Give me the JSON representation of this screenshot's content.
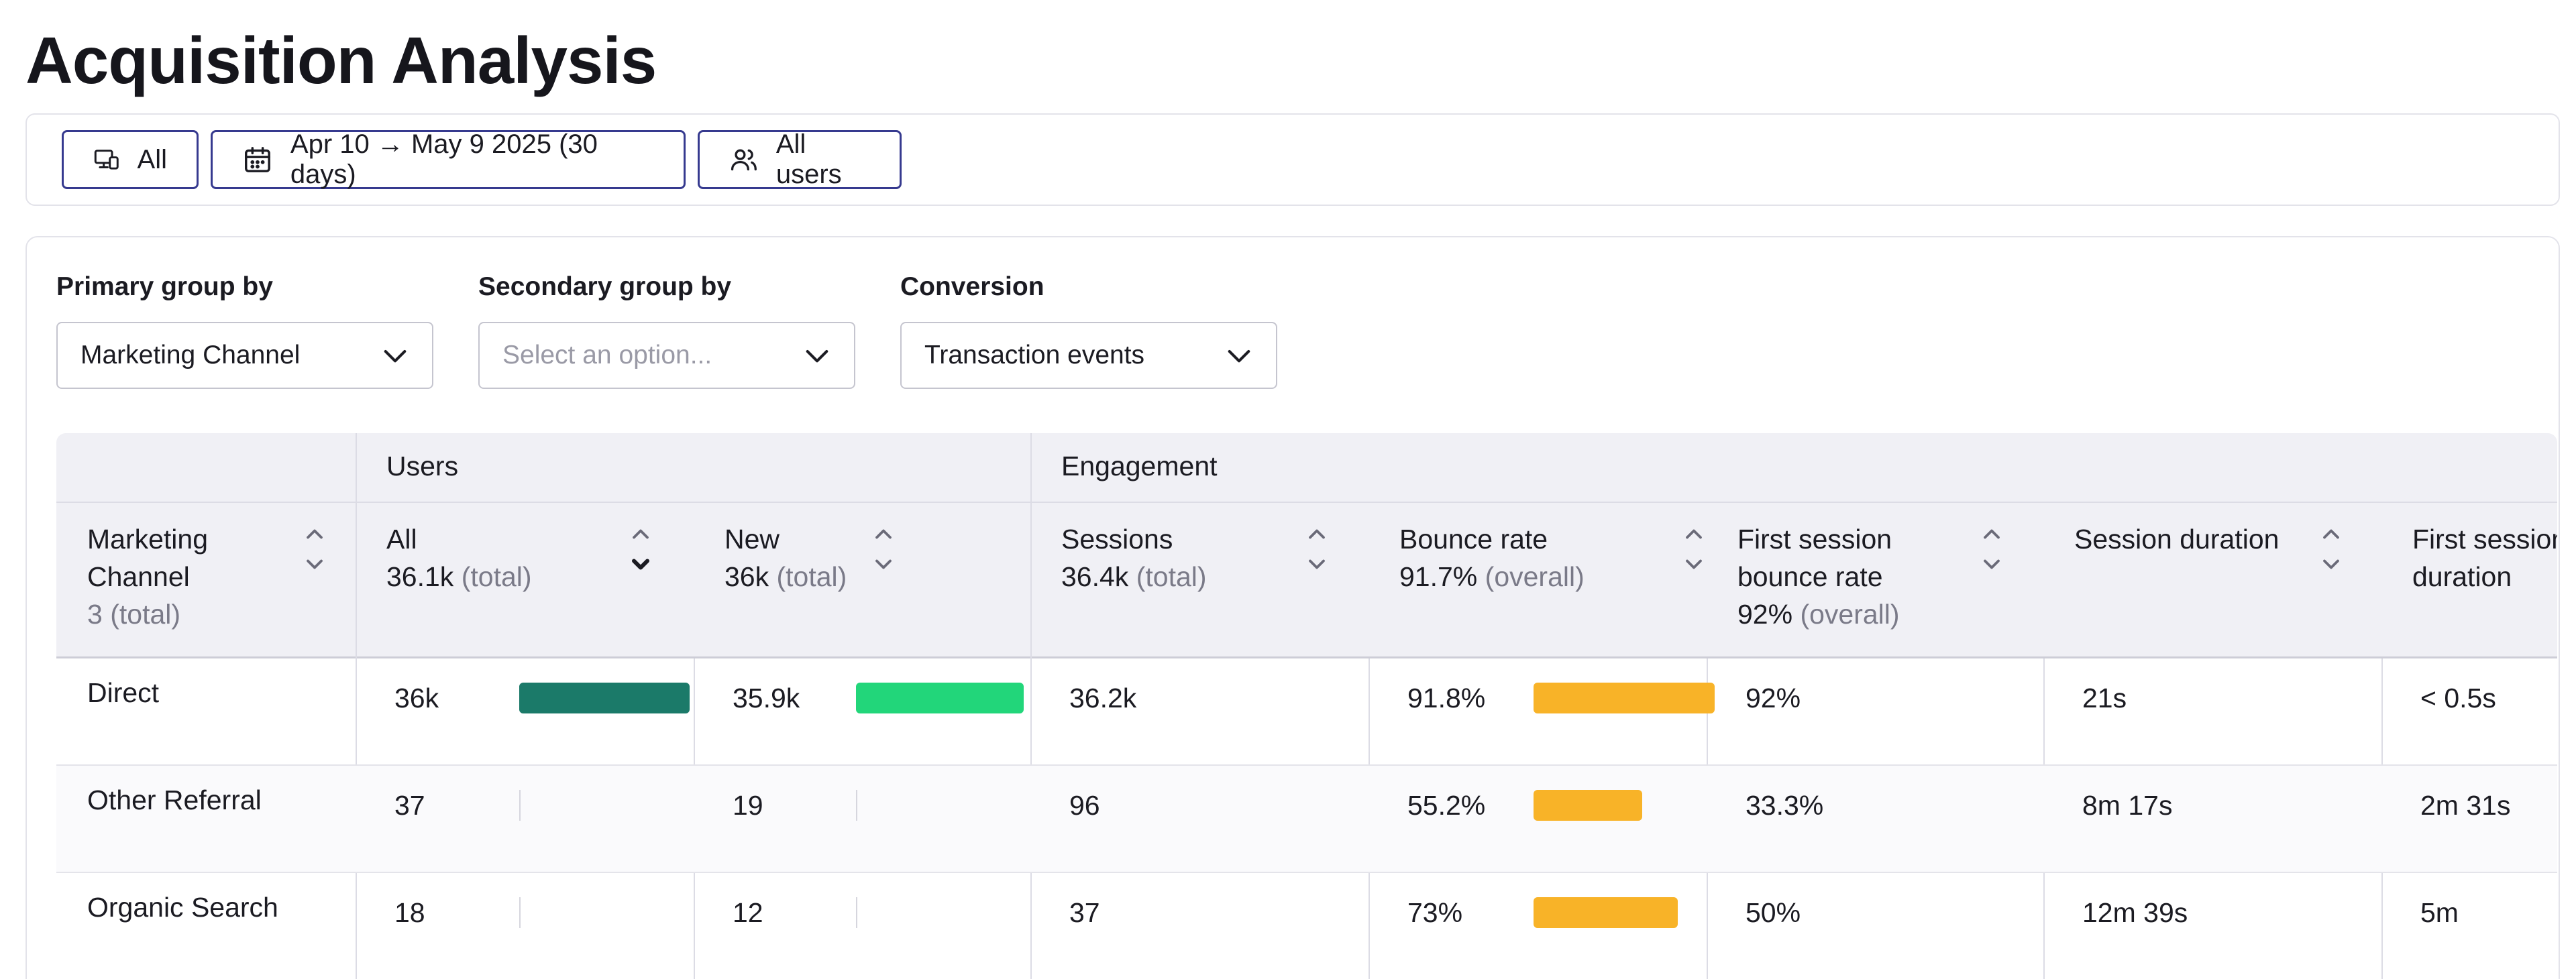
{
  "page": {
    "title": "Acquisition Analysis"
  },
  "filters": [
    {
      "id": "device",
      "label": "All",
      "icon": "device-icon"
    },
    {
      "id": "date",
      "label": "Apr 10 → May 9 2025 (30 days)",
      "icon": "calendar-icon"
    },
    {
      "id": "users",
      "label": "All users",
      "icon": "users-icon"
    }
  ],
  "controls": {
    "primary": {
      "label": "Primary group by",
      "value": "Marketing Channel"
    },
    "secondary": {
      "label": "Secondary group by",
      "placeholder": "Select an option..."
    },
    "conversion": {
      "label": "Conversion",
      "value": "Transaction events"
    }
  },
  "table": {
    "groups": {
      "users": "Users",
      "engagement": "Engagement"
    },
    "columns": [
      {
        "key": "dim",
        "label": "Marketing Channel",
        "total": "3",
        "total_suffix": "(total)"
      },
      {
        "key": "all",
        "label": "All",
        "total": "36.1k",
        "total_suffix": "(total)"
      },
      {
        "key": "new",
        "label": "New",
        "total": "36k",
        "total_suffix": "(total)"
      },
      {
        "key": "sessions",
        "label": "Sessions",
        "total": "36.4k",
        "total_suffix": "(total)"
      },
      {
        "key": "bounce",
        "label": "Bounce rate",
        "total": "91.7%",
        "total_suffix": "(overall)"
      },
      {
        "key": "fsbounce",
        "label": "First session bounce rate",
        "total": "92%",
        "total_suffix": "(overall)"
      },
      {
        "key": "duration",
        "label": "Session duration",
        "total": "",
        "total_suffix": ""
      },
      {
        "key": "fsduration",
        "label": "First session duration",
        "total": "",
        "total_suffix": ""
      }
    ],
    "rows": [
      {
        "dim": "Direct",
        "all": "36k",
        "new": "35.9k",
        "sessions": "36.2k",
        "bounce": "91.8%",
        "fsbounce": "92%",
        "duration": "21s",
        "fsduration": "< 0.5s",
        "all_share": 1.0,
        "new_share": 1.0,
        "bounce_share": 0.918
      },
      {
        "dim": "Other Referral",
        "all": "37",
        "new": "19",
        "sessions": "96",
        "bounce": "55.2%",
        "fsbounce": "33.3%",
        "duration": "8m 17s",
        "fsduration": "2m 31s",
        "all_share": 0.001,
        "new_share": 0.0005,
        "bounce_share": 0.552
      },
      {
        "dim": "Organic Search",
        "all": "18",
        "new": "12",
        "sessions": "37",
        "bounce": "73%",
        "fsbounce": "50%",
        "duration": "12m 39s",
        "fsduration": "5m",
        "all_share": 0.0005,
        "new_share": 0.0003,
        "bounce_share": 0.73
      }
    ]
  },
  "colors": {
    "accent": "#363a8f",
    "bar_all": "#1b7a69",
    "bar_new": "#22d67a",
    "bar_bounce": "#f8b328"
  }
}
